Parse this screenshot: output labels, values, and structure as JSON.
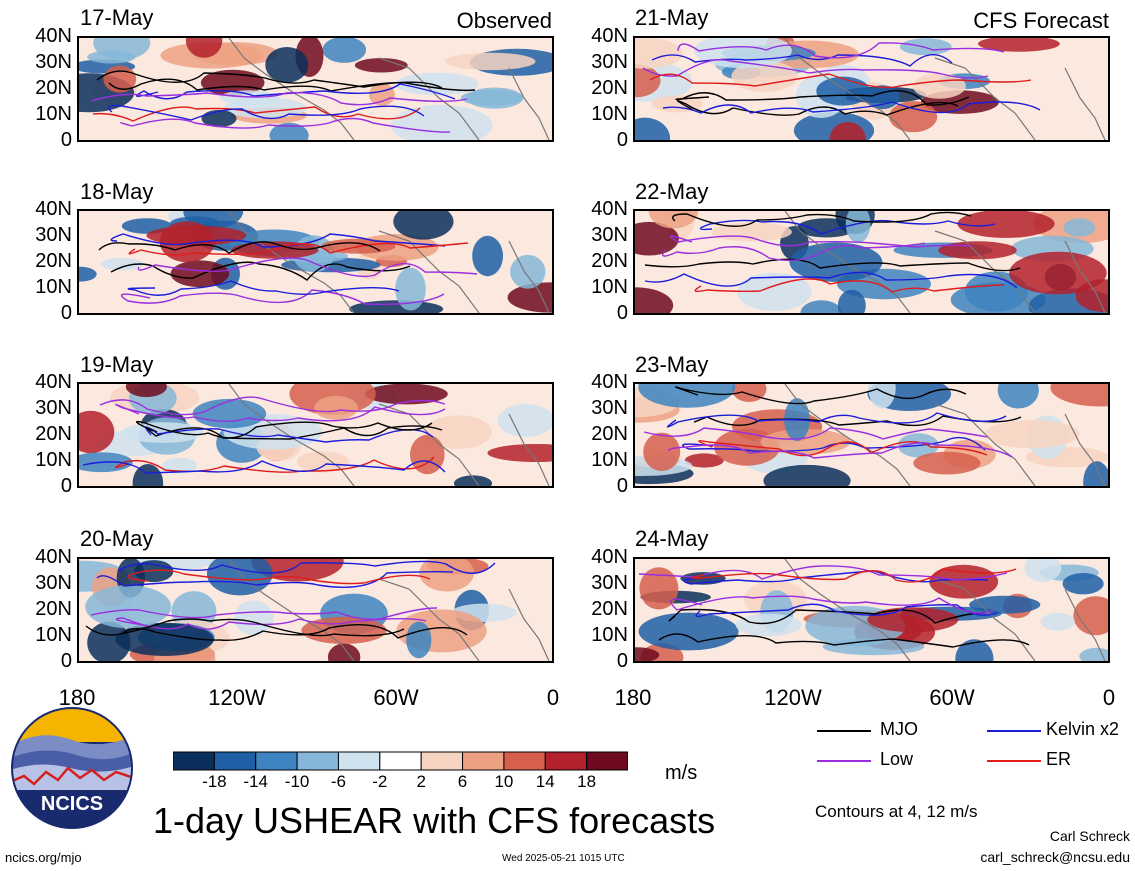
{
  "panels_left": [
    {
      "date": "17-May",
      "corner": "Observed"
    },
    {
      "date": "18-May",
      "corner": ""
    },
    {
      "date": "19-May",
      "corner": ""
    },
    {
      "date": "20-May",
      "corner": ""
    }
  ],
  "panels_right": [
    {
      "date": "21-May",
      "corner": "CFS Forecast"
    },
    {
      "date": "22-May",
      "corner": ""
    },
    {
      "date": "23-May",
      "corner": ""
    },
    {
      "date": "24-May",
      "corner": ""
    }
  ],
  "lat_labels": [
    "40N",
    "30N",
    "20N",
    "10N",
    "0"
  ],
  "lon_labels": [
    "180",
    "120W",
    "60W",
    "0"
  ],
  "colorbar": {
    "labels": [
      "-18",
      "-14",
      "-10",
      "-6",
      "-2",
      "2",
      "6",
      "10",
      "14",
      "18"
    ],
    "colors": [
      "#0a2f5c",
      "#1f5fa6",
      "#3d84c0",
      "#86b7d8",
      "#cfe2ef",
      "#ffffff",
      "#f7d4c2",
      "#eda183",
      "#d65f4e",
      "#b3212c",
      "#6e0a1f"
    ],
    "units": "m/s"
  },
  "legend": {
    "mjo": {
      "label": "MJO",
      "color": "#000000"
    },
    "kelvin": {
      "label": "Kelvin x2",
      "color": "#1c1cdc"
    },
    "low": {
      "label": "Low",
      "color": "#9a2ee0"
    },
    "er": {
      "label": "ER",
      "color": "#e01c1c"
    }
  },
  "contour_note": "Contours at 4, 12 m/s",
  "title": "1-day USHEAR with CFS forecasts",
  "logo_text": "NCICS",
  "footer": {
    "url": "ncics.org/mjo",
    "timestamp": "Wed 2025-05-21 1015 UTC",
    "author": "Carl Schreck",
    "email": "carl_schreck@ncsu.edu"
  }
}
